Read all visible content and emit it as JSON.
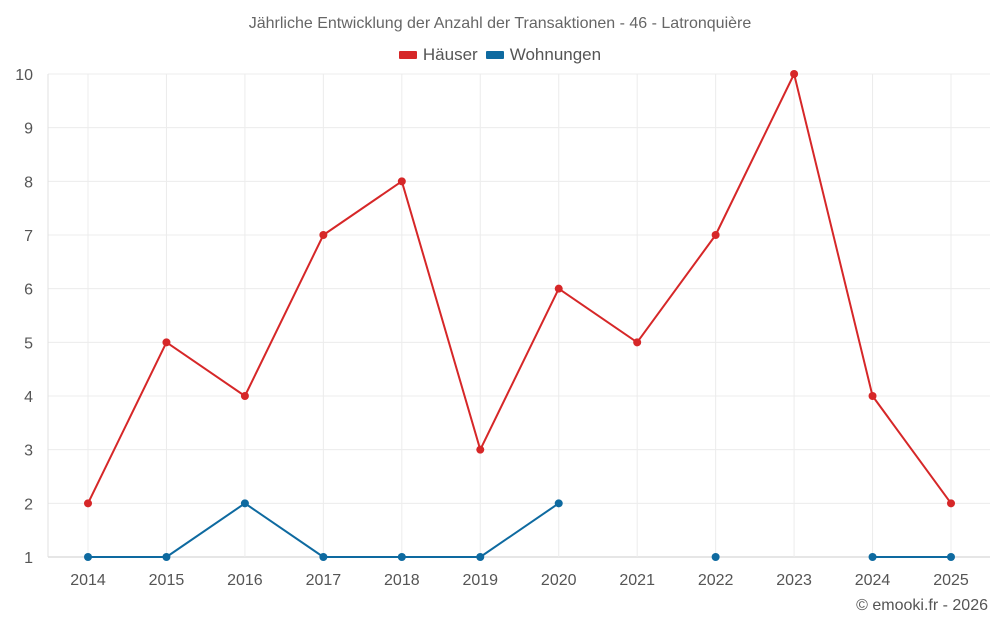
{
  "chart_data": {
    "type": "line",
    "title": "Jährliche Entwicklung der Anzahl der Transaktionen - 46 - Latronquière",
    "categories": [
      "2014",
      "2015",
      "2016",
      "2017",
      "2018",
      "2019",
      "2020",
      "2021",
      "2022",
      "2023",
      "2024",
      "2025"
    ],
    "series": [
      {
        "name": "Häuser",
        "color": "#d62728",
        "values": [
          2,
          5,
          4,
          7,
          8,
          3,
          6,
          5,
          7,
          10,
          4,
          2
        ]
      },
      {
        "name": "Wohnungen",
        "color": "#0e6aa0",
        "values": [
          1,
          1,
          2,
          1,
          1,
          1,
          2,
          null,
          1,
          null,
          1,
          1
        ]
      }
    ],
    "ylim": [
      1,
      10
    ],
    "yticks": [
      "1",
      "2",
      "3",
      "4",
      "5",
      "6",
      "7",
      "8",
      "9",
      "10"
    ],
    "xlabel": "",
    "ylabel": "",
    "grid": true,
    "legend": "top-center"
  },
  "footer": {
    "credit": "© emooki.fr - 2026"
  }
}
